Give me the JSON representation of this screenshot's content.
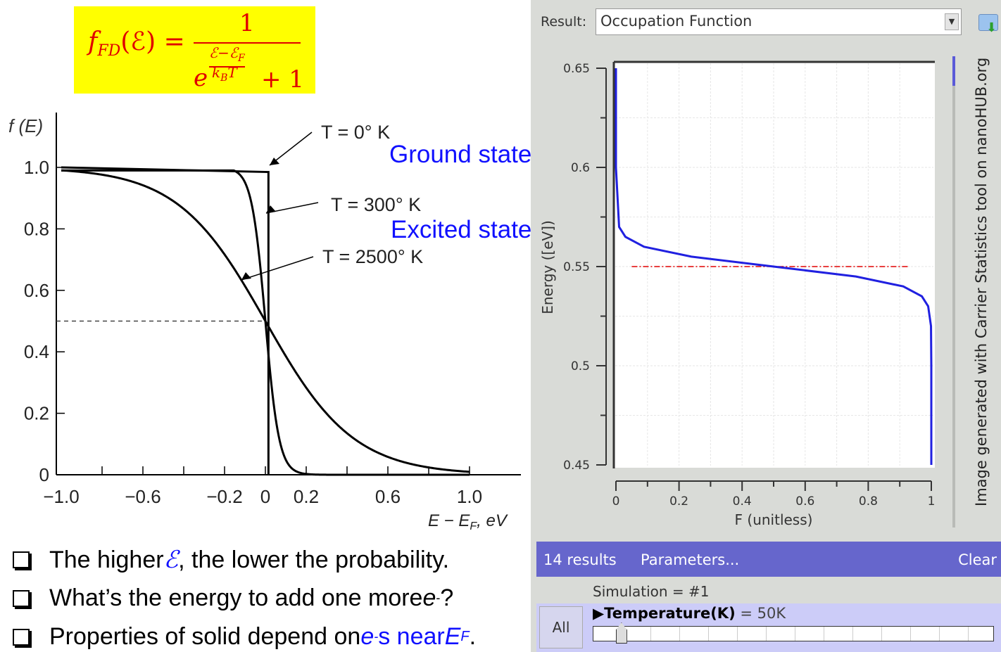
{
  "formula": {
    "lhs": "f",
    "lhs_sub": "FD",
    "arg": "(ℰ) =",
    "numerator": "1",
    "base": "e",
    "exp_num": "ℰ−ℰ",
    "exp_num_sub": "F",
    "exp_den": "k",
    "exp_den_sub": "B",
    "exp_den_T": "T",
    "plus_one": "+ 1"
  },
  "annotations": {
    "ground": "Ground state",
    "excited": "Excited state"
  },
  "bullets": [
    {
      "pre": "The higher ",
      "sym": "ℰ",
      "post": ", the lower the probability."
    },
    {
      "pre": "What’s the energy to add one more ",
      "sym": "e",
      "sup": "-",
      "post": "?"
    },
    {
      "pre": "Properties of solid depend on ",
      "sym": "e",
      "sup": "-",
      "mid": "s near ",
      "sym2": "E",
      "sub2": "F",
      "post": "."
    }
  ],
  "panel": {
    "result_label": "Result:",
    "result_value": "Occupation Function",
    "credit": "Image generated with Carrier Statistics tool on nanoHUB.org",
    "results_count": "14 results",
    "parameters": "Parameters...",
    "clear": "Clear",
    "simulation": "Simulation = #1",
    "all": "All",
    "temperature_label": "Temperature(K)",
    "temperature_value": "= 50K",
    "slider_fraction": 0.07,
    "bar_color": "#6666cc"
  },
  "chart_data": [
    {
      "type": "line",
      "ylabel": "f (E)",
      "xlabel": "E − E_F, eV",
      "xlabel_parts": {
        "a": "E − E",
        "sub": "F",
        "b": ", eV"
      },
      "xlim": [
        -1.0,
        1.1
      ],
      "ylim": [
        0,
        1.0
      ],
      "xticks": [
        "−1.0",
        "−0.6",
        "−0.2",
        "0",
        "0.2",
        "0.6",
        "1.0"
      ],
      "xtick_values": [
        -1.0,
        -0.6,
        -0.2,
        0,
        0.2,
        0.6,
        1.0
      ],
      "yticks": [
        "0",
        "0.2",
        "0.4",
        "0.6",
        "0.8",
        "1.0"
      ],
      "ytick_values": [
        0,
        0.2,
        0.4,
        0.6,
        0.8,
        1.0
      ],
      "x": [
        -1.0,
        -0.8,
        -0.6,
        -0.4,
        -0.2,
        -0.1,
        -0.05,
        0,
        0.05,
        0.1,
        0.2,
        0.4,
        0.6,
        0.8,
        1.0
      ],
      "series": [
        {
          "name": "T = 0° K",
          "values": [
            1,
            1,
            1,
            1,
            1,
            1,
            1,
            0.5,
            0,
            0,
            0,
            0,
            0,
            0,
            0
          ]
        },
        {
          "name": "T = 300° K",
          "values": [
            1,
            1,
            1,
            1,
            1,
            0.98,
            0.874,
            0.5,
            0.126,
            0.02,
            0,
            0,
            0,
            0,
            0
          ]
        },
        {
          "name": "T = 2500° K",
          "values": [
            0.99,
            0.976,
            0.942,
            0.865,
            0.717,
            0.614,
            0.558,
            0.5,
            0.442,
            0.386,
            0.283,
            0.135,
            0.058,
            0.024,
            0.01
          ]
        }
      ],
      "labels": {
        "t0": "T = 0° K",
        "t300": "T = 300° K",
        "t2500": "T = 2500° K"
      },
      "reference_line": {
        "y": 0.5,
        "style": "dashed"
      },
      "grid": false
    },
    {
      "type": "line",
      "title": "Occupation Function",
      "xlabel": "F (unitless)",
      "ylabel": "Energy ([eV])",
      "xlim": [
        0,
        1
      ],
      "ylim": [
        0.45,
        0.65
      ],
      "xticks": [
        "0",
        "0.2",
        "0.4",
        "0.6",
        "0.8",
        "1"
      ],
      "xtick_values": [
        0,
        0.2,
        0.4,
        0.6,
        0.8,
        1
      ],
      "yticks": [
        "0.45",
        "0.5",
        "0.55",
        "0.6",
        "0.65"
      ],
      "ytick_values": [
        0.45,
        0.5,
        0.55,
        0.6,
        0.65
      ],
      "energy": [
        0.45,
        0.5,
        0.52,
        0.53,
        0.535,
        0.54,
        0.545,
        0.55,
        0.555,
        0.56,
        0.565,
        0.57,
        0.6,
        0.65
      ],
      "F": [
        1,
        1,
        0.999,
        0.99,
        0.97,
        0.911,
        0.761,
        0.5,
        0.239,
        0.089,
        0.03,
        0.01,
        0,
        0
      ],
      "series_color": "#2020e0",
      "fermi_level": {
        "energy": 0.55,
        "color": "#e00000",
        "style": "dash-dot"
      },
      "grid": true
    }
  ]
}
